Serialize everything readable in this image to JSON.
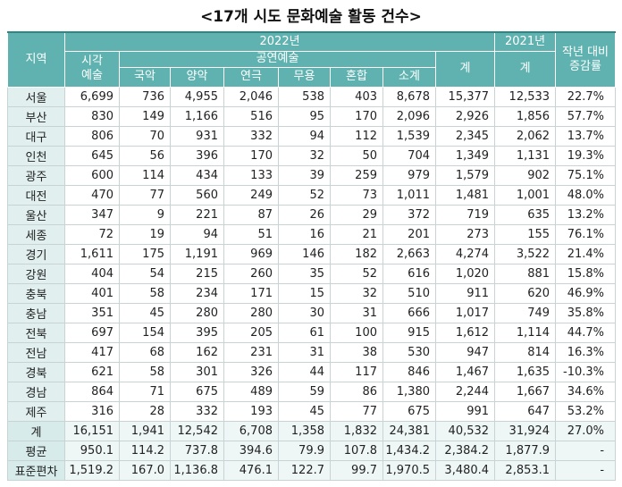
{
  "title": "<17개 시도 문화예술 활동 건수>",
  "header": {
    "region": "지역",
    "year2022": "2022년",
    "year2021": "2021년",
    "change": "작년 대비\n증감률",
    "visual": "시각\n예술",
    "performing": "공연예술",
    "total2022": "계",
    "total2021": "계",
    "sub": [
      "국악",
      "양악",
      "연극",
      "무용",
      "혼합",
      "소계"
    ]
  },
  "table": {
    "rows": [
      [
        "서울",
        "6,699",
        "736",
        "4,955",
        "2,046",
        "538",
        "403",
        "8,678",
        "15,377",
        "12,533",
        "22.7%"
      ],
      [
        "부산",
        "830",
        "149",
        "1,166",
        "516",
        "95",
        "170",
        "2,096",
        "2,926",
        "1,856",
        "57.7%"
      ],
      [
        "대구",
        "806",
        "70",
        "931",
        "332",
        "94",
        "112",
        "1,539",
        "2,345",
        "2,062",
        "13.7%"
      ],
      [
        "인천",
        "645",
        "56",
        "396",
        "170",
        "32",
        "50",
        "704",
        "1,349",
        "1,131",
        "19.3%"
      ],
      [
        "광주",
        "600",
        "114",
        "434",
        "133",
        "39",
        "259",
        "979",
        "1,579",
        "902",
        "75.1%"
      ],
      [
        "대전",
        "470",
        "77",
        "560",
        "249",
        "52",
        "73",
        "1,011",
        "1,481",
        "1,001",
        "48.0%"
      ],
      [
        "울산",
        "347",
        "9",
        "221",
        "87",
        "26",
        "29",
        "372",
        "719",
        "635",
        "13.2%"
      ],
      [
        "세종",
        "72",
        "19",
        "94",
        "51",
        "16",
        "21",
        "201",
        "273",
        "155",
        "76.1%"
      ],
      [
        "경기",
        "1,611",
        "175",
        "1,191",
        "969",
        "146",
        "182",
        "2,663",
        "4,274",
        "3,522",
        "21.4%"
      ],
      [
        "강원",
        "404",
        "54",
        "215",
        "260",
        "35",
        "52",
        "616",
        "1,020",
        "881",
        "15.8%"
      ],
      [
        "충북",
        "401",
        "58",
        "234",
        "171",
        "15",
        "32",
        "510",
        "911",
        "620",
        "46.9%"
      ],
      [
        "충남",
        "351",
        "45",
        "280",
        "280",
        "30",
        "31",
        "666",
        "1,017",
        "749",
        "35.8%"
      ],
      [
        "전북",
        "697",
        "154",
        "395",
        "205",
        "61",
        "100",
        "915",
        "1,612",
        "1,114",
        "44.7%"
      ],
      [
        "전남",
        "417",
        "68",
        "162",
        "231",
        "31",
        "38",
        "530",
        "947",
        "814",
        "16.3%"
      ],
      [
        "경북",
        "621",
        "58",
        "301",
        "326",
        "44",
        "117",
        "846",
        "1,467",
        "1,635",
        "-10.3%"
      ],
      [
        "경남",
        "864",
        "71",
        "675",
        "489",
        "59",
        "86",
        "1,380",
        "2,244",
        "1,667",
        "34.6%"
      ],
      [
        "제주",
        "316",
        "28",
        "332",
        "193",
        "45",
        "77",
        "675",
        "991",
        "647",
        "53.2%"
      ],
      [
        "계",
        "16,151",
        "1,941",
        "12,542",
        "6,708",
        "1,358",
        "1,832",
        "24,381",
        "40,532",
        "31,924",
        "27.0%"
      ],
      [
        "평균",
        "950.1",
        "114.2",
        "737.8",
        "394.6",
        "79.9",
        "107.8",
        "1,434.2",
        "2,384.2",
        "1,877.9",
        "-"
      ],
      [
        "표준편차",
        "1,519.2",
        "167.0",
        "1,136.8",
        "476.1",
        "122.7",
        "99.7",
        "1,970.5",
        "3,480.4",
        "2,853.1",
        "-"
      ]
    ]
  }
}
